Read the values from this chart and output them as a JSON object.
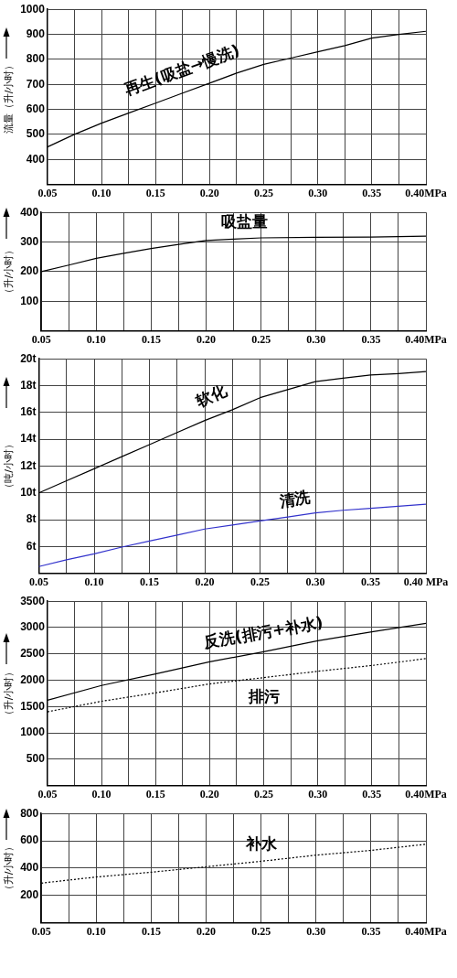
{
  "chart_data": [
    {
      "type": "line",
      "ylabel": "流量（升/小时）",
      "x": [
        0.05,
        0.075,
        0.1,
        0.125,
        0.15,
        0.175,
        0.2,
        0.225,
        0.25,
        0.275,
        0.3,
        0.325,
        0.35,
        0.375,
        0.4
      ],
      "series": [
        {
          "name": "再生(吸盐→慢洗)",
          "color": "#000000",
          "values": [
            450,
            500,
            545,
            585,
            625,
            665,
            705,
            745,
            780,
            805,
            830,
            855,
            885,
            900,
            912
          ]
        }
      ],
      "xlim": [
        0.05,
        0.4
      ],
      "xticks": [
        {
          "value": 0.05,
          "label": "0.05"
        },
        {
          "value": 0.075,
          "label": null
        },
        {
          "value": 0.1,
          "label": "0.10"
        },
        {
          "value": 0.125,
          "label": null
        },
        {
          "value": 0.15,
          "label": "0.15"
        },
        {
          "value": 0.175,
          "label": null
        },
        {
          "value": 0.2,
          "label": "0.20"
        },
        {
          "value": 0.225,
          "label": null
        },
        {
          "value": 0.25,
          "label": "0.25"
        },
        {
          "value": 0.275,
          "label": null
        },
        {
          "value": 0.3,
          "label": "0.30"
        },
        {
          "value": 0.325,
          "label": null
        },
        {
          "value": 0.35,
          "label": "0.35"
        },
        {
          "value": 0.375,
          "label": null
        },
        {
          "value": 0.4,
          "label": "0.40MPa"
        }
      ],
      "ylim": [
        300,
        1000
      ],
      "yticks": [
        400,
        500,
        600,
        700,
        800,
        900,
        1000
      ],
      "grid": true
    },
    {
      "type": "line",
      "ylabel": "（升/小时）",
      "x": [
        0.05,
        0.075,
        0.1,
        0.125,
        0.15,
        0.175,
        0.2,
        0.225,
        0.25,
        0.3,
        0.35,
        0.4
      ],
      "series": [
        {
          "name": "吸盐量",
          "color": "#000000",
          "values": [
            200,
            222,
            245,
            262,
            278,
            292,
            305,
            310,
            314,
            316,
            317,
            320
          ]
        }
      ],
      "xlim": [
        0.05,
        0.4
      ],
      "xticks": [
        {
          "value": 0.05,
          "label": "0.05"
        },
        {
          "value": 0.075,
          "label": null
        },
        {
          "value": 0.1,
          "label": "0.10"
        },
        {
          "value": 0.125,
          "label": null
        },
        {
          "value": 0.15,
          "label": "0.15"
        },
        {
          "value": 0.175,
          "label": null
        },
        {
          "value": 0.2,
          "label": "0.20"
        },
        {
          "value": 0.225,
          "label": null
        },
        {
          "value": 0.25,
          "label": "0.25"
        },
        {
          "value": 0.275,
          "label": null
        },
        {
          "value": 0.3,
          "label": "0.30"
        },
        {
          "value": 0.325,
          "label": null
        },
        {
          "value": 0.35,
          "label": "0.35"
        },
        {
          "value": 0.375,
          "label": null
        },
        {
          "value": 0.4,
          "label": "0.40MPa"
        }
      ],
      "ylim": [
        0,
        400
      ],
      "yticks": [
        100,
        200,
        300,
        400
      ],
      "grid": true
    },
    {
      "type": "line",
      "ylabel": "（吨/小时）",
      "x": [
        0.05,
        0.075,
        0.1,
        0.125,
        0.15,
        0.175,
        0.2,
        0.225,
        0.25,
        0.275,
        0.3,
        0.325,
        0.35,
        0.375,
        0.4
      ],
      "series": [
        {
          "name": "软化",
          "color": "#000000",
          "values": [
            10,
            10.9,
            11.8,
            12.7,
            13.6,
            14.5,
            15.4,
            16.2,
            17.1,
            17.7,
            18.3,
            18.55,
            18.8,
            18.9,
            19.05
          ]
        },
        {
          "name": "清洗",
          "color": "#3333cc",
          "values": [
            4.5,
            5,
            5.45,
            5.95,
            6.4,
            6.85,
            7.3,
            7.6,
            7.9,
            8.2,
            8.5,
            8.7,
            8.85,
            9,
            9.15
          ]
        }
      ],
      "xlim": [
        0.05,
        0.4
      ],
      "xticks": [
        {
          "value": 0.05,
          "label": "0.05"
        },
        {
          "value": 0.075,
          "label": null
        },
        {
          "value": 0.1,
          "label": "0.10"
        },
        {
          "value": 0.125,
          "label": null
        },
        {
          "value": 0.15,
          "label": "0.15"
        },
        {
          "value": 0.175,
          "label": null
        },
        {
          "value": 0.2,
          "label": "0.20"
        },
        {
          "value": 0.225,
          "label": null
        },
        {
          "value": 0.25,
          "label": "0.25"
        },
        {
          "value": 0.275,
          "label": null
        },
        {
          "value": 0.3,
          "label": "0.30"
        },
        {
          "value": 0.325,
          "label": null
        },
        {
          "value": 0.35,
          "label": "0.35"
        },
        {
          "value": 0.375,
          "label": null
        },
        {
          "value": 0.4,
          "label": "0.40 MPa"
        }
      ],
      "ylim": [
        4,
        20
      ],
      "yticks": [
        {
          "value": 6,
          "label": "6t"
        },
        {
          "value": 8,
          "label": "8t"
        },
        {
          "value": 10,
          "label": "10t"
        },
        {
          "value": 12,
          "label": "12t"
        },
        {
          "value": 14,
          "label": "14t"
        },
        {
          "value": 16,
          "label": "16t"
        },
        {
          "value": 18,
          "label": "18t"
        },
        {
          "value": 20,
          "label": "20t"
        }
      ],
      "grid": true
    },
    {
      "type": "line",
      "ylabel": "（升/小时）",
      "x": [
        0.05,
        0.1,
        0.15,
        0.2,
        0.25,
        0.3,
        0.35,
        0.4
      ],
      "series": [
        {
          "name": "反洗(排污+补水)",
          "color": "#000000",
          "values": [
            1620,
            1900,
            2120,
            2350,
            2540,
            2750,
            2920,
            3080
          ]
        },
        {
          "name": "排污",
          "color": "#000000",
          "line_style": "dotted",
          "values": [
            1400,
            1600,
            1760,
            1930,
            2050,
            2170,
            2280,
            2410
          ]
        }
      ],
      "xlim": [
        0.05,
        0.4
      ],
      "xticks": [
        {
          "value": 0.05,
          "label": "0.05"
        },
        {
          "value": 0.075,
          "label": null
        },
        {
          "value": 0.1,
          "label": "0.10"
        },
        {
          "value": 0.125,
          "label": null
        },
        {
          "value": 0.15,
          "label": "0.15"
        },
        {
          "value": 0.175,
          "label": null
        },
        {
          "value": 0.2,
          "label": "0.20"
        },
        {
          "value": 0.225,
          "label": null
        },
        {
          "value": 0.25,
          "label": "0.25"
        },
        {
          "value": 0.275,
          "label": null
        },
        {
          "value": 0.3,
          "label": "0.30"
        },
        {
          "value": 0.325,
          "label": null
        },
        {
          "value": 0.35,
          "label": "0.35"
        },
        {
          "value": 0.375,
          "label": null
        },
        {
          "value": 0.4,
          "label": "0.40MPa"
        }
      ],
      "ylim": [
        0,
        3500
      ],
      "yticks": [
        500,
        1000,
        1500,
        2000,
        2500,
        3000,
        3500
      ],
      "grid": true
    },
    {
      "type": "line",
      "ylabel": "（升/小时）",
      "x": [
        0.05,
        0.1,
        0.15,
        0.2,
        0.25,
        0.3,
        0.35,
        0.4
      ],
      "series": [
        {
          "name": "补水",
          "color": "#000000",
          "values": [
            290,
            335,
            370,
            410,
            450,
            495,
            530,
            575
          ]
        }
      ],
      "line_style": "dotted",
      "xlim": [
        0.05,
        0.4
      ],
      "xticks": [
        {
          "value": 0.05,
          "label": "0.05"
        },
        {
          "value": 0.075,
          "label": null
        },
        {
          "value": 0.1,
          "label": "0.10"
        },
        {
          "value": 0.125,
          "label": null
        },
        {
          "value": 0.15,
          "label": "0.15"
        },
        {
          "value": 0.175,
          "label": null
        },
        {
          "value": 0.2,
          "label": "0.20"
        },
        {
          "value": 0.225,
          "label": null
        },
        {
          "value": 0.25,
          "label": "0.25"
        },
        {
          "value": 0.275,
          "label": null
        },
        {
          "value": 0.3,
          "label": "0.30"
        },
        {
          "value": 0.325,
          "label": null
        },
        {
          "value": 0.35,
          "label": "0.35"
        },
        {
          "value": 0.375,
          "label": null
        },
        {
          "value": 0.4,
          "label": "0.40MPa"
        }
      ],
      "ylim": [
        0,
        800
      ],
      "yticks": [
        200,
        400,
        600,
        800
      ],
      "grid": true
    }
  ]
}
